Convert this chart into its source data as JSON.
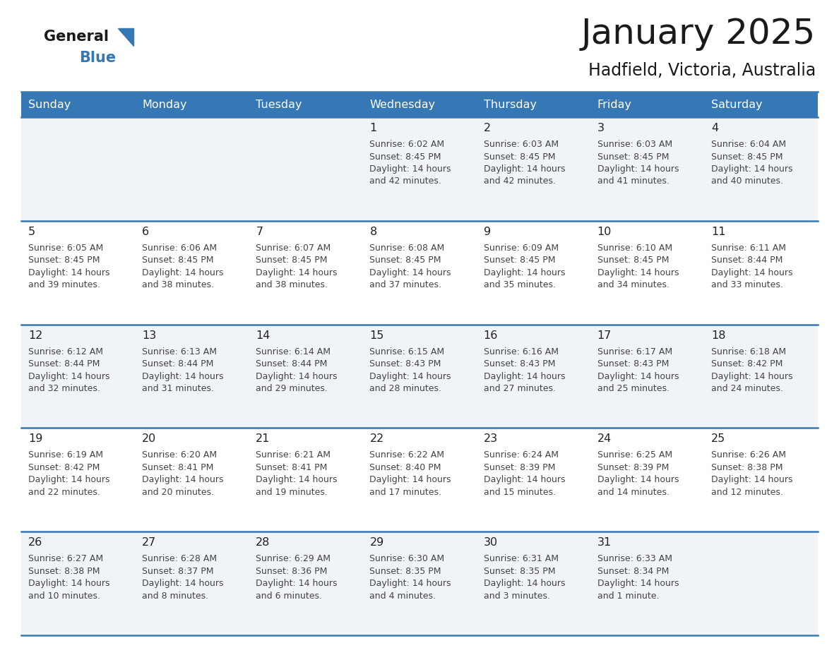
{
  "title": "January 2025",
  "subtitle": "Hadfield, Victoria, Australia",
  "header_bg_color": "#3578b5",
  "header_text_color": "#ffffff",
  "days_of_week": [
    "Sunday",
    "Monday",
    "Tuesday",
    "Wednesday",
    "Thursday",
    "Friday",
    "Saturday"
  ],
  "row_bg_odd": "#f0f3f7",
  "row_bg_even": "#ffffff",
  "row_bg_empty_odd": "#e8ecf1",
  "row_bg_empty_even": "#f5f5f5",
  "border_color": "#3578b5",
  "text_color": "#444444",
  "day_num_color": "#222222",
  "calendar_data": [
    [
      null,
      null,
      null,
      {
        "day": "1",
        "sunrise": "6:02 AM",
        "sunset": "8:45 PM",
        "daylight": "14 hours",
        "daylight2": "and 42 minutes."
      },
      {
        "day": "2",
        "sunrise": "6:03 AM",
        "sunset": "8:45 PM",
        "daylight": "14 hours",
        "daylight2": "and 42 minutes."
      },
      {
        "day": "3",
        "sunrise": "6:03 AM",
        "sunset": "8:45 PM",
        "daylight": "14 hours",
        "daylight2": "and 41 minutes."
      },
      {
        "day": "4",
        "sunrise": "6:04 AM",
        "sunset": "8:45 PM",
        "daylight": "14 hours",
        "daylight2": "and 40 minutes."
      }
    ],
    [
      {
        "day": "5",
        "sunrise": "6:05 AM",
        "sunset": "8:45 PM",
        "daylight": "14 hours",
        "daylight2": "and 39 minutes."
      },
      {
        "day": "6",
        "sunrise": "6:06 AM",
        "sunset": "8:45 PM",
        "daylight": "14 hours",
        "daylight2": "and 38 minutes."
      },
      {
        "day": "7",
        "sunrise": "6:07 AM",
        "sunset": "8:45 PM",
        "daylight": "14 hours",
        "daylight2": "and 38 minutes."
      },
      {
        "day": "8",
        "sunrise": "6:08 AM",
        "sunset": "8:45 PM",
        "daylight": "14 hours",
        "daylight2": "and 37 minutes."
      },
      {
        "day": "9",
        "sunrise": "6:09 AM",
        "sunset": "8:45 PM",
        "daylight": "14 hours",
        "daylight2": "and 35 minutes."
      },
      {
        "day": "10",
        "sunrise": "6:10 AM",
        "sunset": "8:45 PM",
        "daylight": "14 hours",
        "daylight2": "and 34 minutes."
      },
      {
        "day": "11",
        "sunrise": "6:11 AM",
        "sunset": "8:44 PM",
        "daylight": "14 hours",
        "daylight2": "and 33 minutes."
      }
    ],
    [
      {
        "day": "12",
        "sunrise": "6:12 AM",
        "sunset": "8:44 PM",
        "daylight": "14 hours",
        "daylight2": "and 32 minutes."
      },
      {
        "day": "13",
        "sunrise": "6:13 AM",
        "sunset": "8:44 PM",
        "daylight": "14 hours",
        "daylight2": "and 31 minutes."
      },
      {
        "day": "14",
        "sunrise": "6:14 AM",
        "sunset": "8:44 PM",
        "daylight": "14 hours",
        "daylight2": "and 29 minutes."
      },
      {
        "day": "15",
        "sunrise": "6:15 AM",
        "sunset": "8:43 PM",
        "daylight": "14 hours",
        "daylight2": "and 28 minutes."
      },
      {
        "day": "16",
        "sunrise": "6:16 AM",
        "sunset": "8:43 PM",
        "daylight": "14 hours",
        "daylight2": "and 27 minutes."
      },
      {
        "day": "17",
        "sunrise": "6:17 AM",
        "sunset": "8:43 PM",
        "daylight": "14 hours",
        "daylight2": "and 25 minutes."
      },
      {
        "day": "18",
        "sunrise": "6:18 AM",
        "sunset": "8:42 PM",
        "daylight": "14 hours",
        "daylight2": "and 24 minutes."
      }
    ],
    [
      {
        "day": "19",
        "sunrise": "6:19 AM",
        "sunset": "8:42 PM",
        "daylight": "14 hours",
        "daylight2": "and 22 minutes."
      },
      {
        "day": "20",
        "sunrise": "6:20 AM",
        "sunset": "8:41 PM",
        "daylight": "14 hours",
        "daylight2": "and 20 minutes."
      },
      {
        "day": "21",
        "sunrise": "6:21 AM",
        "sunset": "8:41 PM",
        "daylight": "14 hours",
        "daylight2": "and 19 minutes."
      },
      {
        "day": "22",
        "sunrise": "6:22 AM",
        "sunset": "8:40 PM",
        "daylight": "14 hours",
        "daylight2": "and 17 minutes."
      },
      {
        "day": "23",
        "sunrise": "6:24 AM",
        "sunset": "8:39 PM",
        "daylight": "14 hours",
        "daylight2": "and 15 minutes."
      },
      {
        "day": "24",
        "sunrise": "6:25 AM",
        "sunset": "8:39 PM",
        "daylight": "14 hours",
        "daylight2": "and 14 minutes."
      },
      {
        "day": "25",
        "sunrise": "6:26 AM",
        "sunset": "8:38 PM",
        "daylight": "14 hours",
        "daylight2": "and 12 minutes."
      }
    ],
    [
      {
        "day": "26",
        "sunrise": "6:27 AM",
        "sunset": "8:38 PM",
        "daylight": "14 hours",
        "daylight2": "and 10 minutes."
      },
      {
        "day": "27",
        "sunrise": "6:28 AM",
        "sunset": "8:37 PM",
        "daylight": "14 hours",
        "daylight2": "and 8 minutes."
      },
      {
        "day": "28",
        "sunrise": "6:29 AM",
        "sunset": "8:36 PM",
        "daylight": "14 hours",
        "daylight2": "and 6 minutes."
      },
      {
        "day": "29",
        "sunrise": "6:30 AM",
        "sunset": "8:35 PM",
        "daylight": "14 hours",
        "daylight2": "and 4 minutes."
      },
      {
        "day": "30",
        "sunrise": "6:31 AM",
        "sunset": "8:35 PM",
        "daylight": "14 hours",
        "daylight2": "and 3 minutes."
      },
      {
        "day": "31",
        "sunrise": "6:33 AM",
        "sunset": "8:34 PM",
        "daylight": "14 hours",
        "daylight2": "and 1 minute."
      },
      null
    ]
  ]
}
